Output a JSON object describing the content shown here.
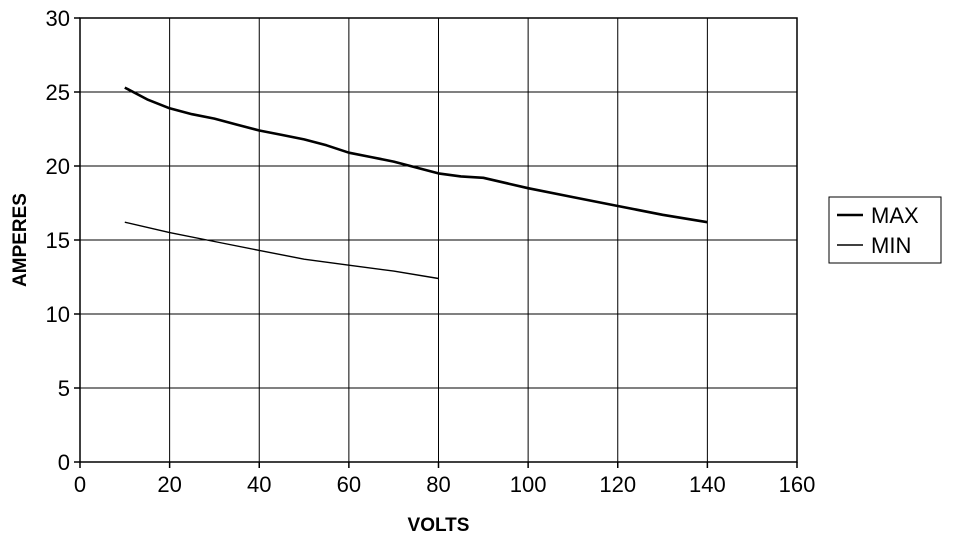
{
  "chart_data": {
    "type": "line",
    "title": "",
    "xlabel": "VOLTS",
    "ylabel": "AMPERES",
    "xlim": [
      0,
      160
    ],
    "ylim": [
      0,
      30
    ],
    "xticks": [
      0,
      20,
      40,
      60,
      80,
      100,
      120,
      140,
      160
    ],
    "yticks": [
      0,
      5,
      10,
      15,
      20,
      25,
      30
    ],
    "grid": true,
    "legend_position": "right",
    "series": [
      {
        "name": "MAX",
        "color": "#000000",
        "x": [
          10,
          15,
          20,
          25,
          30,
          35,
          40,
          45,
          50,
          55,
          60,
          65,
          70,
          75,
          80,
          85,
          90,
          100,
          110,
          120,
          130,
          140
        ],
        "y": [
          25.3,
          24.5,
          23.9,
          23.5,
          23.2,
          22.8,
          22.4,
          22.1,
          21.8,
          21.4,
          20.9,
          20.6,
          20.3,
          19.9,
          19.5,
          19.3,
          19.2,
          18.5,
          17.9,
          17.3,
          16.7,
          16.2
        ]
      },
      {
        "name": "MIN",
        "color": "#000000",
        "x": [
          10,
          20,
          30,
          40,
          50,
          60,
          70,
          80
        ],
        "y": [
          16.2,
          15.5,
          14.9,
          14.3,
          13.7,
          13.3,
          12.9,
          12.4
        ]
      }
    ]
  }
}
